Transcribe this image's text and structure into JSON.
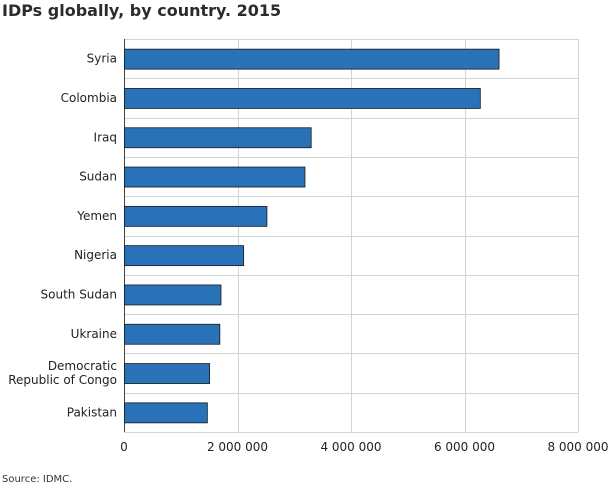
{
  "chart_data": {
    "type": "bar",
    "orientation": "horizontal",
    "title": "IDPs globally, by country. 2015",
    "categories": [
      "Syria",
      "Colombia",
      "Iraq",
      "Sudan",
      "Yemen",
      "Nigeria",
      "South Sudan",
      "Ukraine",
      "Democratic Republic of Congo",
      "Pakistan"
    ],
    "category_label_lines": [
      [
        "Syria"
      ],
      [
        "Colombia"
      ],
      [
        "Iraq"
      ],
      [
        "Sudan"
      ],
      [
        "Yemen"
      ],
      [
        "Nigeria"
      ],
      [
        "South Sudan"
      ],
      [
        "Ukraine"
      ],
      [
        "Democratic",
        "Republic of Congo"
      ],
      [
        "Pakistan"
      ]
    ],
    "values": [
      6600000,
      6270000,
      3290000,
      3180000,
      2510000,
      2100000,
      1700000,
      1680000,
      1500000,
      1460000
    ],
    "xlim": [
      0,
      8000000
    ],
    "xticks": [
      0,
      2000000,
      4000000,
      6000000,
      8000000
    ],
    "xtick_labels": [
      "0",
      "2 000 000",
      "4 000 000",
      "6 000 000",
      "8 000 000"
    ],
    "xlabel": "",
    "ylabel": "",
    "grid": true,
    "bar_color": "#2a72b8",
    "bar_edge_color": "#1a1a1a",
    "source": "Source: IDMC."
  }
}
